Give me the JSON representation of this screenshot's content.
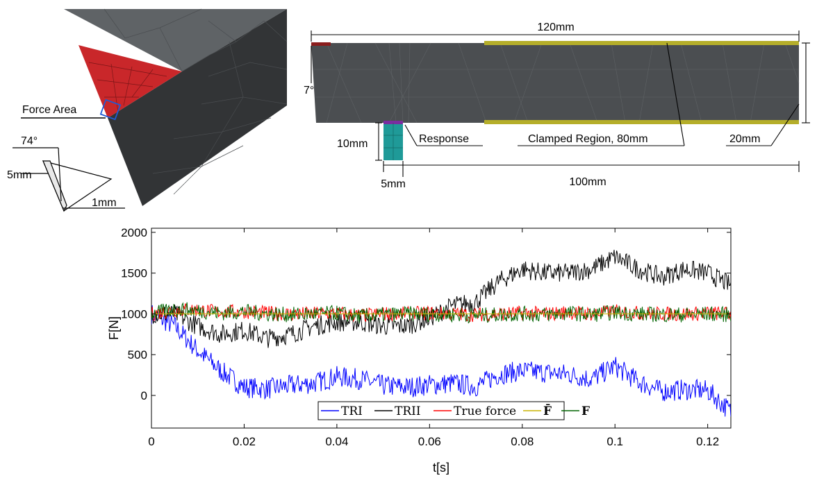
{
  "mesh_panel_left": {
    "force_area_label": "Force Area",
    "angle_label": "74°",
    "thickness_label": "5mm",
    "edge_label": "1mm"
  },
  "mesh_panel_right": {
    "length_label": "120mm",
    "angle_label": "7°",
    "sensor_height_label": "10mm",
    "response_label": "Response",
    "clamped_label": "Clamped Region, 80mm",
    "height_label": "20mm",
    "sensor_width_label": "5mm",
    "span_label": "100mm"
  },
  "chart_data": {
    "type": "line",
    "title": "",
    "xlabel": "t[s]",
    "ylabel": "F[N]",
    "xlim": [
      0,
      0.125
    ],
    "ylim": [
      -400,
      2050
    ],
    "xticks": [
      0,
      0.02,
      0.04,
      0.06,
      0.08,
      0.1,
      0.12
    ],
    "xtick_labels": [
      "0",
      "0.02",
      "0.04",
      "0.06",
      "0.08",
      "0.1",
      "0.12"
    ],
    "yticks": [
      0,
      500,
      1000,
      1500,
      2000
    ],
    "ytick_labels": [
      "0",
      "500",
      "1000",
      "1500",
      "2000"
    ],
    "grid": false,
    "legend_position": "bottom-center",
    "series": [
      {
        "name": "TRI",
        "color": "#0000ff",
        "x": [
          0,
          0.005,
          0.01,
          0.015,
          0.02,
          0.025,
          0.03,
          0.035,
          0.04,
          0.045,
          0.05,
          0.055,
          0.06,
          0.065,
          0.07,
          0.075,
          0.08,
          0.085,
          0.09,
          0.095,
          0.1,
          0.105,
          0.11,
          0.115,
          0.12,
          0.125
        ],
        "values": [
          1000,
          850,
          550,
          300,
          100,
          80,
          120,
          150,
          230,
          200,
          120,
          100,
          130,
          150,
          110,
          260,
          300,
          280,
          260,
          200,
          360,
          170,
          50,
          70,
          60,
          -200
        ]
      },
      {
        "name": "TRII",
        "color": "#000000",
        "x": [
          0,
          0.005,
          0.01,
          0.015,
          0.02,
          0.025,
          0.03,
          0.035,
          0.04,
          0.045,
          0.05,
          0.055,
          0.06,
          0.065,
          0.07,
          0.075,
          0.08,
          0.085,
          0.09,
          0.095,
          0.1,
          0.105,
          0.11,
          0.115,
          0.12,
          0.125
        ],
        "values": [
          1000,
          1000,
          850,
          750,
          800,
          700,
          750,
          850,
          900,
          900,
          850,
          850,
          950,
          1100,
          1150,
          1400,
          1550,
          1500,
          1500,
          1550,
          1700,
          1550,
          1450,
          1550,
          1500,
          1350
        ]
      },
      {
        "name": "True force",
        "color": "#ff0000",
        "x": [
          0,
          0.005,
          0.01,
          0.015,
          0.02,
          0.025,
          0.03,
          0.035,
          0.04,
          0.045,
          0.05,
          0.055,
          0.06,
          0.065,
          0.07,
          0.075,
          0.08,
          0.085,
          0.09,
          0.095,
          0.1,
          0.105,
          0.11,
          0.115,
          0.12,
          0.125
        ],
        "values": [
          1000,
          1050,
          1050,
          1020,
          1030,
          1010,
          1000,
          1000,
          1010,
          980,
          1000,
          1000,
          1010,
          1000,
          990,
          1000,
          1010,
          1000,
          1020,
          1000,
          1030,
          1010,
          1000,
          1000,
          1010,
          1000
        ]
      },
      {
        "name": "F̄",
        "color": "#c8b400",
        "x": [
          0,
          0.125
        ],
        "values": [
          1000,
          1000
        ]
      },
      {
        "name": "F",
        "color": "#006400",
        "x": [
          0,
          0.005,
          0.01,
          0.015,
          0.02,
          0.025,
          0.03,
          0.035,
          0.04,
          0.045,
          0.05,
          0.055,
          0.06,
          0.065,
          0.07,
          0.075,
          0.08,
          0.085,
          0.09,
          0.095,
          0.1,
          0.105,
          0.11,
          0.115,
          0.12,
          0.125
        ],
        "values": [
          1000,
          1060,
          1040,
          1010,
          1030,
          1000,
          990,
          1000,
          1010,
          970,
          990,
          1000,
          1000,
          990,
          980,
          990,
          1000,
          990,
          1010,
          990,
          1020,
          1000,
          990,
          990,
          1000,
          990
        ]
      }
    ]
  }
}
